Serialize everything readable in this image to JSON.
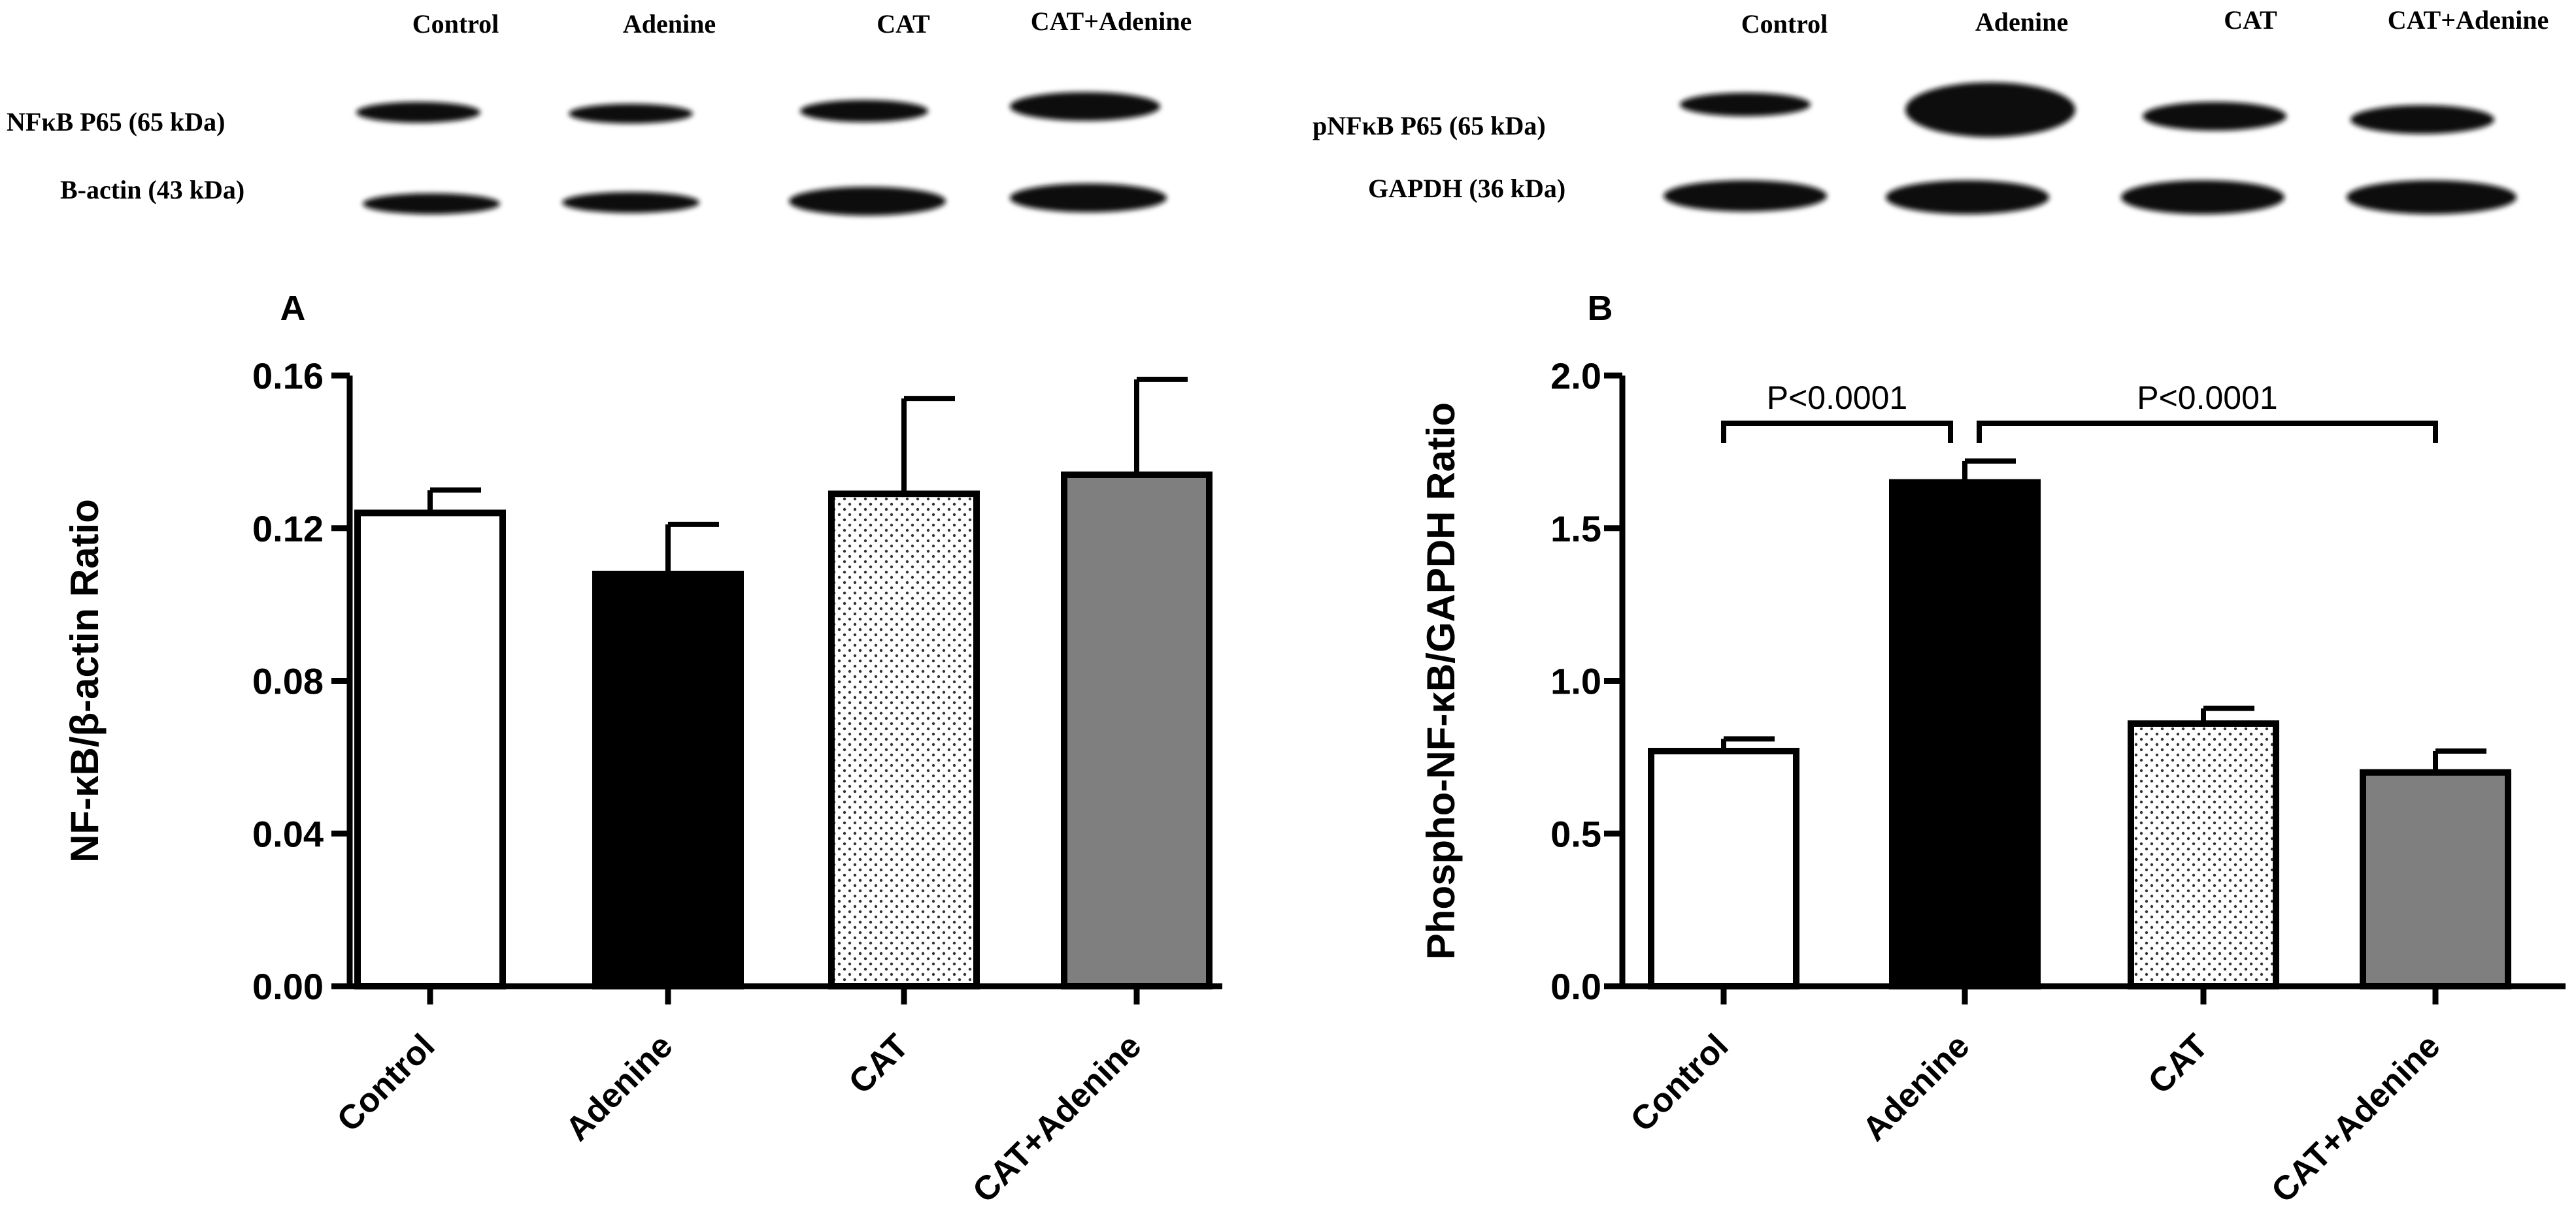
{
  "blots": [
    {
      "lanes": [
        "Control",
        "Adenine",
        "CAT",
        "CAT+Adenine"
      ],
      "row_labels": [
        "NFκB P65  (65 kDa)",
        "B-actin  (43 kDa)"
      ]
    },
    {
      "lanes": [
        "Control",
        "Adenine",
        "CAT",
        "CAT+Adenine"
      ],
      "row_labels": [
        "pNFκB P65  (65 kDa)",
        "GAPDH  (36 kDa)"
      ]
    }
  ],
  "chart_data": [
    {
      "type": "bar",
      "panel": "A",
      "categories": [
        "Control",
        "Adenine",
        "CAT",
        "CAT+Adenine"
      ],
      "values": [
        0.124,
        0.108,
        0.129,
        0.134
      ],
      "errors": [
        0.006,
        0.013,
        0.025,
        0.025
      ],
      "ylabel": "NF-κB/β-actin Ratio",
      "ylim": [
        0,
        0.16
      ],
      "yticks": [
        0,
        0.04,
        0.08,
        0.12,
        0.16
      ],
      "ytick_labels": [
        "0.00",
        "0.04",
        "0.08",
        "0.12",
        "0.16"
      ],
      "bar_fills": [
        "white",
        "black",
        "dots",
        "gray"
      ],
      "significance": []
    },
    {
      "type": "bar",
      "panel": "B",
      "categories": [
        "Control",
        "Adenine",
        "CAT",
        "CAT+Adenine"
      ],
      "values": [
        0.77,
        1.65,
        0.86,
        0.7
      ],
      "errors": [
        0.04,
        0.07,
        0.05,
        0.07
      ],
      "ylabel": "Phospho-NF-κB/GAPDH Ratio",
      "ylim": [
        0,
        2.0
      ],
      "yticks": [
        0,
        0.5,
        1.0,
        1.5,
        2.0
      ],
      "ytick_labels": [
        "0.0",
        "0.5",
        "1.0",
        "1.5",
        "2.0"
      ],
      "bar_fills": [
        "white",
        "black",
        "dots",
        "gray"
      ],
      "significance": [
        {
          "from": 0,
          "to": 1,
          "label": "P<0.0001"
        },
        {
          "from": 1,
          "to": 3,
          "label": "P<0.0001"
        }
      ]
    }
  ],
  "colors": {
    "bar_black": "#000000",
    "bar_gray": "#7f7f7f",
    "bar_white": "#ffffff",
    "axis": "#000000"
  }
}
